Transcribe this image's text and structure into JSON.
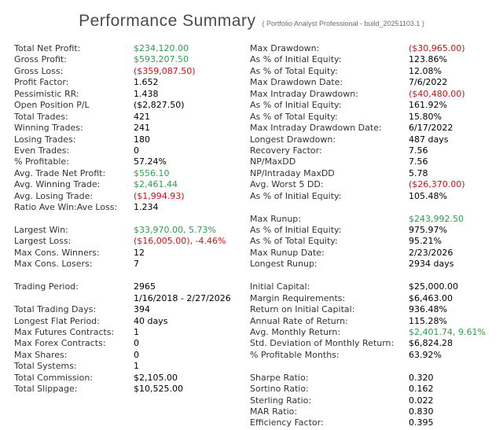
{
  "header": {
    "title": "Performance Summary",
    "subtitle": "( Portfolio Analyst Professional - build_20251103.1 )"
  },
  "colors": {
    "positive_green": "#2e9e4c",
    "negative_red": "#cc1111",
    "label_gray": "#333333",
    "title_gray": "#4b4b4b",
    "background": "#ffffff"
  },
  "rows": [
    {
      "ll": "Total Net Profit:",
      "lv": "$234,120.00",
      "lc": "g",
      "rl": "Max Drawdown:",
      "rv": "($30,965.00)",
      "rc": "r"
    },
    {
      "ll": "Gross Profit:",
      "lv": "$593,207.50",
      "lc": "g",
      "rl": "As % of Initial Equity:",
      "rv": "123.86%",
      "rc": ""
    },
    {
      "ll": "Gross Loss:",
      "lv": "($359,087.50)",
      "lc": "r",
      "rl": "As % of Total Equity:",
      "rv": "12.08%",
      "rc": ""
    },
    {
      "ll": "Profit Factor:",
      "lv": "1.652",
      "lc": "",
      "rl": "Max Drawdown Date:",
      "rv": "7/6/2022",
      "rc": ""
    },
    {
      "ll": "Pessimistic RR:",
      "lv": "1.438",
      "lc": "",
      "rl": "Max Intraday Drawdown:",
      "rv": "($40,480.00)",
      "rc": "r"
    },
    {
      "ll": "Open Position P/L",
      "lv": "($2,827.50)",
      "lc": "",
      "rl": "As % of Initial Equity:",
      "rv": "161.92%",
      "rc": ""
    },
    {
      "ll": "Total Trades:",
      "lv": "421",
      "lc": "",
      "rl": "As % of Total Equity:",
      "rv": "15.80%",
      "rc": ""
    },
    {
      "ll": "Winning Trades:",
      "lv": "241",
      "lc": "",
      "rl": "Max Intraday Drawdown Date:",
      "rv": "6/17/2022",
      "rc": ""
    },
    {
      "ll": "Losing Trades:",
      "lv": "180",
      "lc": "",
      "rl": "Longest Drawdown:",
      "rv": "487 days",
      "rc": ""
    },
    {
      "ll": "Even Trades:",
      "lv": "0",
      "lc": "",
      "rl": "Recovery Factor:",
      "rv": "7.56",
      "rc": ""
    },
    {
      "ll": "% Profitable:",
      "lv": "57.24%",
      "lc": "",
      "rl": "NP/MaxDD",
      "rv": "7.56",
      "rc": ""
    },
    {
      "ll": "Avg. Trade Net Profit:",
      "lv": "$556.10",
      "lc": "g",
      "rl": "NP/Intraday MaxDD",
      "rv": "5.78",
      "rc": ""
    },
    {
      "ll": "Avg. Winning Trade:",
      "lv": "$2,461.44",
      "lc": "g",
      "rl": "Avg. Worst 5 DD:",
      "rv": "($26,370.00)",
      "rc": "r"
    },
    {
      "ll": "Avg. Losing Trade:",
      "lv": "($1,994.93)",
      "lc": "r",
      "rl": "As % of Initial Equity:",
      "rv": "105.48%",
      "rc": ""
    },
    {
      "ll": "Ratio Ave Win:Ave Loss:",
      "lv": "1.234",
      "lc": "",
      "rl": "",
      "rv": "",
      "rc": ""
    },
    {
      "ll": "",
      "lv": "",
      "lc": "",
      "rl": "Max Runup:",
      "rv": "$243,992.50",
      "rc": "g"
    },
    {
      "ll": "Largest Win:",
      "lv": "$33,970.00, 5.73%",
      "lc": "g",
      "rl": "As % of Initial Equity:",
      "rv": "975.97%",
      "rc": ""
    },
    {
      "ll": "Largest Loss:",
      "lv": "($16,005.00), -4.46%",
      "lc": "r",
      "rl": "As % of Total Equity:",
      "rv": "95.21%",
      "rc": ""
    },
    {
      "ll": "Max Cons. Winners:",
      "lv": "12",
      "lc": "",
      "rl": "Max Runup Date:",
      "rv": "2/23/2026",
      "rc": ""
    },
    {
      "ll": "Max Cons. Losers:",
      "lv": "7",
      "lc": "",
      "rl": "Longest Runup:",
      "rv": "2934 days",
      "rc": ""
    },
    {
      "ll": "",
      "lv": "",
      "lc": "",
      "rl": "",
      "rv": "",
      "rc": ""
    },
    {
      "ll": "Trading Period:",
      "lv": "2965",
      "lc": "",
      "rl": "Initial Capital:",
      "rv": "$25,000.00",
      "rc": ""
    },
    {
      "ll": "",
      "lv": "1/16/2018 - 2/27/2026",
      "lc": "",
      "rl": "Margin Requirements:",
      "rv": "$6,463.00",
      "rc": ""
    },
    {
      "ll": "Total Trading Days:",
      "lv": "394",
      "lc": "",
      "rl": "Return on Initial Capital:",
      "rv": "936.48%",
      "rc": ""
    },
    {
      "ll": "Longest Flat Period:",
      "lv": "40 days",
      "lc": "",
      "rl": "Annual Rate of Return:",
      "rv": "115.28%",
      "rc": ""
    },
    {
      "ll": "Max Futures Contracts:",
      "lv": "1",
      "lc": "",
      "rl": "Avg. Monthly Return:",
      "rv": "$2,401.74, 9.61%",
      "rc": "g"
    },
    {
      "ll": "Max Forex Contracts:",
      "lv": "0",
      "lc": "",
      "rl": "Std. Deviation of Monthly Return:",
      "rv": "$6,824.28",
      "rc": ""
    },
    {
      "ll": "Max Shares:",
      "lv": "0",
      "lc": "",
      "rl": "% Profitable Months:",
      "rv": "63.92%",
      "rc": ""
    },
    {
      "ll": "Total Systems:",
      "lv": "1",
      "lc": "",
      "rl": "",
      "rv": "",
      "rc": ""
    },
    {
      "ll": "Total Commission:",
      "lv": "$2,105.00",
      "lc": "",
      "rl": "Sharpe Ratio:",
      "rv": "0.320",
      "rc": ""
    },
    {
      "ll": "Total Slippage:",
      "lv": "$10,525.00",
      "lc": "",
      "rl": "Sortino Ratio:",
      "rv": "0.162",
      "rc": ""
    },
    {
      "ll": "",
      "lv": "",
      "lc": "",
      "rl": "Sterling Ratio:",
      "rv": "0.022",
      "rc": ""
    },
    {
      "ll": "",
      "lv": "",
      "lc": "",
      "rl": "MAR Ratio:",
      "rv": "0.830",
      "rc": ""
    },
    {
      "ll": "",
      "lv": "",
      "lc": "",
      "rl": "Efficiency Factor:",
      "rv": "0.395",
      "rc": ""
    }
  ]
}
